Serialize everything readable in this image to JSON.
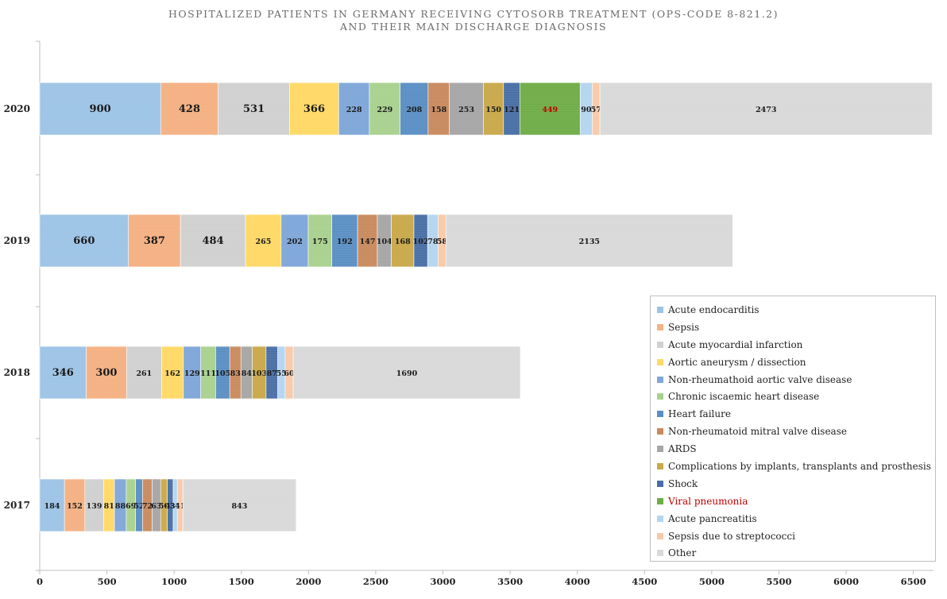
{
  "title_line1": "HOSPITALIZED PATIENTS IN GERMANY RECEIVING CYTOSORB TREATMENT (OPS-CODE 8-821.2)",
  "title_line2": "AND THEIR MAIN DISCHARGE DIAGNOSIS",
  "chart_data": {
    "type": "bar",
    "orientation": "horizontal",
    "stacked": true,
    "title": "HOSPITALIZED PATIENTS IN GERMANY RECEIVING CYTOSORB TREATMENT (OPS-CODE 8-821.2) AND THEIR MAIN DISCHARGE DIAGNOSIS",
    "categories": [
      "2020",
      "2019",
      "2018",
      "2017"
    ],
    "xlim": [
      0,
      6600
    ],
    "xticks": [
      0,
      500,
      1000,
      1500,
      2000,
      2500,
      3000,
      3500,
      4000,
      4500,
      5000,
      5500,
      6000,
      6500
    ],
    "legend_position": "bottom-right",
    "grid": false,
    "series": [
      {
        "name": "Acute endocarditis",
        "color": "#9dc3e6",
        "values": [
          900,
          660,
          346,
          184
        ]
      },
      {
        "name": "Sepsis",
        "color": "#f4b183",
        "values": [
          428,
          387,
          300,
          152
        ]
      },
      {
        "name": "Acute myocardial infarction",
        "color": "#d0d0d0",
        "values": [
          531,
          484,
          261,
          139
        ]
      },
      {
        "name": "Aortic aneurysm / dissection",
        "color": "#ffd966",
        "values": [
          366,
          265,
          162,
          81
        ]
      },
      {
        "name": "Non-rheumathoid aortic valve disease",
        "color": "#7fa7d9",
        "values": [
          228,
          202,
          129,
          88
        ]
      },
      {
        "name": "Chronic iscaemic heart disease",
        "color": "#a9d18e",
        "values": [
          229,
          175,
          111,
          69
        ]
      },
      {
        "name": "Heart failure",
        "color": "#5b8fc4",
        "values": [
          208,
          192,
          105,
          52
        ]
      },
      {
        "name": "Non-rheumatoid mitral valve disease",
        "color": "#c98a5e",
        "values": [
          158,
          147,
          83,
          72
        ]
      },
      {
        "name": "ARDS",
        "color": "#a6a6a6",
        "values": [
          253,
          104,
          84,
          63
        ]
      },
      {
        "name": "Complications by implants, transplants and prosthesis",
        "color": "#c9a94a",
        "values": [
          150,
          168,
          103,
          50
        ]
      },
      {
        "name": "Shock",
        "color": "#4a6fa5",
        "values": [
          121,
          102,
          87,
          43
        ]
      },
      {
        "name": "Viral pneumonia",
        "color": "#70ad47",
        "values": [
          449,
          0,
          0,
          0
        ]
      },
      {
        "name": "Acute pancreatitis",
        "color": "#b4d5f0",
        "values": [
          90,
          78,
          55,
          31
        ]
      },
      {
        "name": "Sepsis due to streptococci",
        "color": "#f8c9a8",
        "values": [
          57,
          58,
          60,
          41
        ]
      },
      {
        "name": "Other",
        "color": "#d9d9d9",
        "values": [
          2473,
          2135,
          1690,
          843
        ]
      }
    ],
    "segment_labels": [
      [
        "900",
        "428",
        "531",
        "366",
        "228",
        "229",
        "208",
        "158",
        "253",
        "150",
        "121",
        "449",
        "90",
        "57",
        "2473"
      ],
      [
        "660",
        "387",
        "484",
        "265",
        "202",
        "175",
        "192",
        "147",
        "104",
        "168",
        "102",
        "78",
        "58",
        "2135"
      ],
      [
        "346",
        "300",
        "261",
        "162",
        "129",
        "111",
        "105",
        "83",
        "84",
        "103",
        "87",
        "55",
        "60",
        "1690"
      ],
      [
        "184",
        "152",
        "139",
        "81",
        "88",
        "69",
        "52",
        "72",
        "63",
        "50",
        "43",
        "31",
        "41",
        "843"
      ]
    ],
    "highlight_color": "#c00000"
  },
  "legend_title_color": "#c00000"
}
